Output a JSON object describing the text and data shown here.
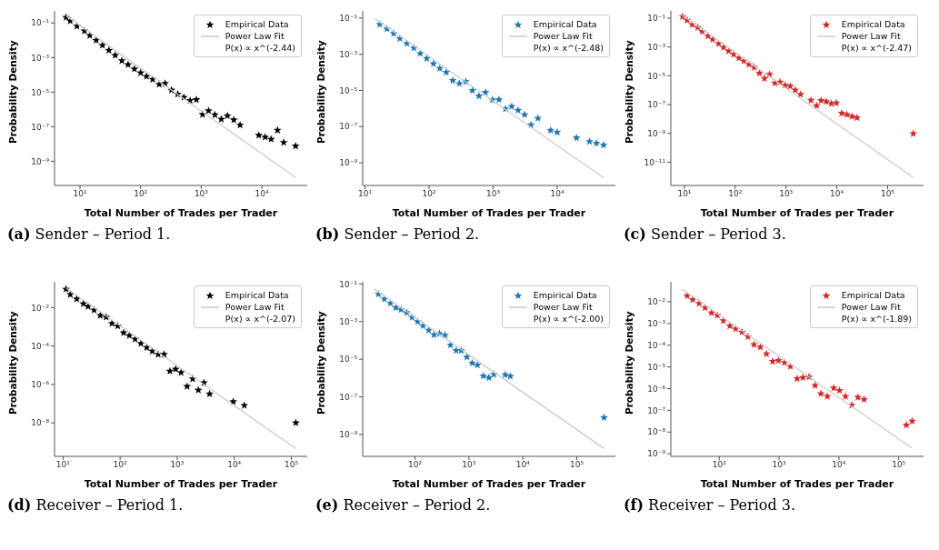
{
  "chart_data": [
    {
      "type": "scatter",
      "xlabel": "Total Number of Trades per Trader",
      "ylabel": "Probability Density",
      "log": "xy",
      "marker": "star",
      "legend": "top right",
      "xlim": [
        3.8,
        56000
      ],
      "ylim": [
        4e-11,
        0.5
      ],
      "xticks": [
        {
          "value": 10,
          "label": "10¹"
        },
        {
          "value": 100,
          "label": "10²"
        },
        {
          "value": 1000,
          "label": "10³"
        },
        {
          "value": 10000,
          "label": "10⁴"
        }
      ],
      "yticks": [
        {
          "value": 1e-09,
          "label": "10⁻⁹"
        },
        {
          "value": 1e-07,
          "label": "10⁻⁷"
        },
        {
          "value": 1e-05,
          "label": "10⁻⁵"
        },
        {
          "value": 0.001,
          "label": "10⁻³"
        },
        {
          "value": 0.1,
          "label": "10⁻¹"
        }
      ],
      "series": [
        {
          "name": "Empirical Data",
          "color": "#000000",
          "x": [
            5.9,
            6.9,
            8.9,
            11.8,
            14.5,
            18.5,
            23.4,
            30,
            38,
            49,
            62,
            79,
            100,
            125,
            158,
            203,
            253,
            323,
            409,
            516,
            655,
            831,
            1050,
            1320,
            1680,
            2140,
            2700,
            3450,
            4370,
            8900,
            11300,
            14200,
            18100,
            22900,
            36000
          ],
          "values": [
            0.21,
            0.13,
            0.066,
            0.035,
            0.019,
            0.01,
            0.0051,
            0.0026,
            0.00135,
            0.00066,
            0.00039,
            0.00022,
            0.00013,
            8.1e-05,
            5.5e-05,
            2.8e-05,
            3.2e-05,
            1.3e-05,
            7.6e-06,
            5e-06,
            3.3e-06,
            3.7e-06,
            5.1e-07,
            8.4e-07,
            4.9e-07,
            2.7e-07,
            4.3e-07,
            2.5e-07,
            1.26e-07,
            3.2e-08,
            2.5e-08,
            1.9e-08,
            6.3e-08,
            1.23e-08,
            7.6e-09
          ]
        },
        {
          "name": "Power Law Fit",
          "type": "line",
          "marker": "none",
          "color": "#cccccc",
          "x": [
            5.9,
            36000
          ],
          "values": [
            0.26,
            1.15e-10
          ]
        }
      ],
      "annotations": [
        "P(x) ∝ x^(-2.44)",
        "(a) Sender – Period 1."
      ]
    },
    {
      "type": "scatter",
      "xlabel": "Total Number of Trades per Trader",
      "ylabel": "Probability Density",
      "log": "xy",
      "marker": "star",
      "legend": "top right",
      "xlim": [
        9.2,
        81000
      ],
      "ylim": [
        5.6e-11,
        0.25
      ],
      "xticks": [
        {
          "value": 10,
          "label": "10¹"
        },
        {
          "value": 100,
          "label": "10²"
        },
        {
          "value": 1000,
          "label": "10³"
        },
        {
          "value": 10000,
          "label": "10⁴"
        }
      ],
      "yticks": [
        {
          "value": 1e-09,
          "label": "10⁻⁹"
        },
        {
          "value": 1e-07,
          "label": "10⁻⁷"
        },
        {
          "value": 1e-05,
          "label": "10⁻⁵"
        },
        {
          "value": 0.001,
          "label": "10⁻³"
        },
        {
          "value": 0.1,
          "label": "10⁻¹"
        }
      ],
      "series": [
        {
          "name": "Empirical Data",
          "color": "#1f77b4",
          "x": [
            17,
            22,
            28,
            35,
            45,
            58,
            73,
            92,
            117,
            147,
            185,
            235,
            297,
            374,
            475,
            600,
            760,
            975,
            1230,
            1560,
            1950,
            2450,
            3100,
            3900,
            5000,
            7900,
            10000,
            20000,
            32000,
            41000,
            53000
          ],
          "values": [
            0.045,
            0.025,
            0.014,
            0.0074,
            0.004,
            0.0022,
            0.0011,
            0.00059,
            0.0003,
            0.000166,
            0.0001,
            3.5e-05,
            2.4e-05,
            3.1e-05,
            1e-05,
            4.9e-06,
            7.8e-06,
            3e-06,
            3.1e-06,
            9.6e-07,
            1.3e-06,
            8e-07,
            4.6e-07,
            1.26e-07,
            2.9e-07,
            6.2e-08,
            4.9e-08,
            2.4e-08,
            1.5e-08,
            1.2e-08,
            9.7e-09
          ]
        },
        {
          "name": "Power Law Fit",
          "type": "line",
          "marker": "none",
          "color": "#cccccc",
          "x": [
            14,
            53000
          ],
          "values": [
            0.096,
            1.5e-10
          ]
        }
      ],
      "annotations": [
        "P(x) ∝ x^(-2.48)",
        "(b) Sender – Period 2."
      ]
    },
    {
      "type": "scatter",
      "xlabel": "Total Number of Trades per Trader",
      "ylabel": "Probability Density",
      "log": "xy",
      "marker": "star",
      "legend": "top right",
      "xlim": [
        5.4,
        510000
      ],
      "ylim": [
        2.4e-13,
        0.32
      ],
      "xticks": [
        {
          "value": 10,
          "label": "10¹"
        },
        {
          "value": 100,
          "label": "10²"
        },
        {
          "value": 1000,
          "label": "10³"
        },
        {
          "value": 10000,
          "label": "10⁴"
        },
        {
          "value": 100000,
          "label": "10⁵"
        }
      ],
      "yticks": [
        {
          "value": 1e-11,
          "label": "10⁻¹¹"
        },
        {
          "value": 1e-09,
          "label": "10⁻⁹"
        },
        {
          "value": 1e-07,
          "label": "10⁻⁷"
        },
        {
          "value": 1e-05,
          "label": "10⁻⁵"
        },
        {
          "value": 0.001,
          "label": "10⁻³"
        },
        {
          "value": 0.1,
          "label": "10⁻¹"
        }
      ],
      "series": [
        {
          "name": "Empirical Data",
          "color": "#d62728",
          "x": [
            9.2,
            11.3,
            14.3,
            18.3,
            22.4,
            29,
            36,
            47,
            59,
            74,
            93,
            118,
            148,
            187,
            236,
            300,
            378,
            475,
            605,
            760,
            960,
            1210,
            1520,
            1930,
            3100,
            4000,
            4900,
            6200,
            7800,
            9800,
            12500,
            15800,
            20000,
            25000,
            320000
          ],
          "values": [
            0.13,
            0.072,
            0.036,
            0.023,
            0.012,
            0.0059,
            0.0034,
            0.0017,
            0.00096,
            0.00052,
            0.00031,
            0.00017,
            0.000107,
            6.2e-05,
            3.9e-05,
            1.5e-05,
            6.6e-06,
            1.26e-05,
            3.1e-06,
            3.6e-06,
            2.2e-06,
            1.9e-06,
            1e-06,
            5.1e-07,
            2e-07,
            8.3e-08,
            1.9e-07,
            1.6e-07,
            1.2e-07,
            1.3e-07,
            2.5e-08,
            2e-08,
            1.5e-08,
            1.2e-08,
            9.6e-10
          ]
        },
        {
          "name": "Power Law Fit",
          "type": "line",
          "marker": "none",
          "color": "#cccccc",
          "x": [
            9,
            320000
          ],
          "values": [
            0.16,
            8.5e-13
          ]
        }
      ],
      "annotations": [
        "P(x) ∝ x^(-2.47)",
        "(c) Sender – Period 3."
      ]
    },
    {
      "type": "scatter",
      "xlabel": "Total Number of Trades per Trader",
      "ylabel": "Probability Density",
      "log": "xy",
      "marker": "star",
      "legend": "top right",
      "xlim": [
        7.1,
        190000
      ],
      "ylim": [
        1.8e-10,
        0.22
      ],
      "xticks": [
        {
          "value": 10,
          "label": "10¹"
        },
        {
          "value": 100,
          "label": "10²"
        },
        {
          "value": 1000,
          "label": "10³"
        },
        {
          "value": 10000,
          "label": "10⁴"
        },
        {
          "value": 100000,
          "label": "10⁵"
        }
      ],
      "yticks": [
        {
          "value": 1e-08,
          "label": "10⁻⁸"
        },
        {
          "value": 1e-06,
          "label": "10⁻⁶"
        },
        {
          "value": 0.0001,
          "label": "10⁻⁴"
        },
        {
          "value": 0.01,
          "label": "10⁻²"
        }
      ],
      "series": [
        {
          "name": "Empirical Data",
          "color": "#000000",
          "x": [
            11.3,
            13.4,
            17.4,
            22.7,
            27.5,
            35,
            45,
            57,
            72,
            91,
            115,
            145,
            183,
            231,
            293,
            366,
            465,
            590,
            745,
            940,
            1170,
            1490,
            1870,
            2350,
            2950,
            3700,
            9600,
            15000,
            120000
          ],
          "values": [
            0.091,
            0.048,
            0.028,
            0.016,
            0.0114,
            0.0074,
            0.0039,
            0.0032,
            0.0015,
            0.0011,
            0.00049,
            0.00035,
            0.00023,
            0.000135,
            8.4e-05,
            5.4e-05,
            3.7e-05,
            3.7e-05,
            4.9e-06,
            6.2e-06,
            4.1e-06,
            7.9e-07,
            1.96e-06,
            5.1e-07,
            1.23e-06,
            3.2e-07,
            1.26e-07,
            8.1e-08,
            1e-08
          ]
        },
        {
          "name": "Power Law Fit",
          "type": "line",
          "marker": "none",
          "color": "#cccccc",
          "x": [
            11.3,
            120000
          ],
          "values": [
            0.106,
            4.5e-10
          ]
        }
      ],
      "annotations": [
        "P(x) ∝ x^(-2.07)",
        "(d) Receiver – Period 1."
      ]
    },
    {
      "type": "scatter",
      "xlabel": "Total Number of Trades per Trader",
      "ylabel": "Probability Density",
      "log": "xy",
      "marker": "star",
      "legend": "top right",
      "xlim": [
        10.7,
        520000
      ],
      "ylim": [
        6.9e-11,
        0.13
      ],
      "xticks": [
        {
          "value": 100,
          "label": "10²"
        },
        {
          "value": 1000,
          "label": "10³"
        },
        {
          "value": 10000,
          "label": "10⁴"
        },
        {
          "value": 100000,
          "label": "10⁵"
        }
      ],
      "yticks": [
        {
          "value": 1e-09,
          "label": "10⁻⁹"
        },
        {
          "value": 1e-07,
          "label": "10⁻⁷"
        },
        {
          "value": 1e-05,
          "label": "10⁻⁵"
        },
        {
          "value": 0.001,
          "label": "10⁻³"
        },
        {
          "value": 0.1,
          "label": "10⁻¹"
        }
      ],
      "series": [
        {
          "name": "Empirical Data",
          "color": "#1f77b4",
          "x": [
            21,
            27,
            35,
            44,
            55,
            70,
            88,
            112,
            141,
            179,
            225,
            284,
            361,
            455,
            578,
            720,
            915,
            1150,
            1440,
            1850,
            2350,
            2900,
            4700,
            5850,
            320000
          ],
          "values": [
            0.029,
            0.016,
            0.0095,
            0.0055,
            0.0043,
            0.003,
            0.0017,
            0.001,
            0.0006,
            0.00035,
            0.0002,
            0.00023,
            0.00019,
            5.7e-05,
            2.9e-05,
            2.9e-05,
            1.3e-05,
            6.3e-06,
            4.9e-06,
            1.3e-06,
            1.05e-06,
            1.58e-06,
            1.5e-06,
            1.24e-06,
            7.9e-09
          ]
        },
        {
          "name": "Power Law Fit",
          "type": "line",
          "marker": "none",
          "color": "#cccccc",
          "x": [
            17.3,
            320000
          ],
          "values": [
            0.054,
            1.8e-10
          ]
        }
      ],
      "annotations": [
        "P(x) ∝ x^(-2.00)",
        "(e) Receiver – Period 2."
      ]
    },
    {
      "type": "scatter",
      "xlabel": "Total Number of Trades per Trader",
      "ylabel": "Probability Density",
      "log": "xy",
      "marker": "star",
      "legend": "top right",
      "xlim": [
        15.5,
        260000
      ],
      "ylim": [
        7.6e-10,
        0.083
      ],
      "xticks": [
        {
          "value": 100,
          "label": "10²"
        },
        {
          "value": 1000,
          "label": "10³"
        },
        {
          "value": 10000,
          "label": "10⁴"
        },
        {
          "value": 100000,
          "label": "10⁵"
        }
      ],
      "yticks": [
        {
          "value": 1e-09,
          "label": "10⁻⁹"
        },
        {
          "value": 1e-08,
          "label": "10⁻⁸"
        },
        {
          "value": 1e-07,
          "label": "10⁻⁷"
        },
        {
          "value": 1e-06,
          "label": "10⁻⁶"
        },
        {
          "value": 1e-05,
          "label": "10⁻⁵"
        },
        {
          "value": 0.0001,
          "label": "10⁻⁴"
        },
        {
          "value": 0.001,
          "label": "10⁻³"
        },
        {
          "value": 0.01,
          "label": "10⁻²"
        }
      ],
      "series": [
        {
          "name": "Empirical Data",
          "color": "#d62728",
          "x": [
            29,
            36,
            46,
            58,
            74,
            93,
            117,
            150,
            188,
            240,
            302,
            380,
            485,
            615,
            780,
            975,
            1230,
            1550,
            2000,
            2500,
            3160,
            4000,
            5000,
            6400,
            8200,
            10200,
            12900,
            16400,
            20800,
            26300,
            134000,
            168000
          ],
          "values": [
            0.019,
            0.0126,
            0.0084,
            0.0053,
            0.0031,
            0.0024,
            0.00135,
            0.00077,
            0.00057,
            0.0004,
            0.00025,
            0.000107,
            8.2e-05,
            4e-05,
            1.8e-05,
            1.95e-05,
            1.6e-05,
            1.05e-05,
            2.9e-06,
            3.2e-06,
            3.5e-06,
            1.4e-06,
            5.8e-07,
            4.4e-07,
            1.06e-06,
            8.2e-07,
            4.4e-07,
            1.73e-07,
            4e-07,
            3.2e-07,
            2.1e-08,
            3.2e-08
          ]
        },
        {
          "name": "Power Law Fit",
          "type": "line",
          "marker": "none",
          "color": "#cccccc",
          "x": [
            23.7,
            168000
          ],
          "values": [
            0.038,
            1.8e-09
          ]
        }
      ],
      "annotations": [
        "P(x) ∝ x^(-1.89)",
        "(f) Receiver – Period 3."
      ]
    }
  ]
}
